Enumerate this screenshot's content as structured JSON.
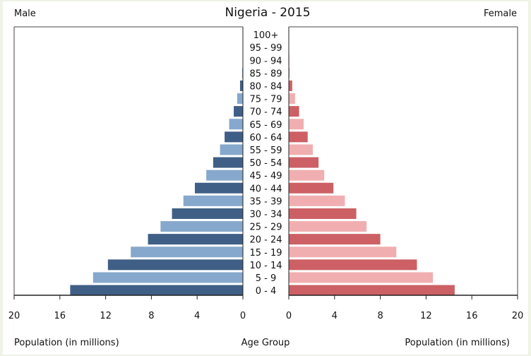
{
  "chart_data": {
    "type": "bar",
    "title": "Nigeria - 2015",
    "left_label": "Male",
    "right_label": "Female",
    "xlabel_left": "Population (in millions)",
    "xlabel_center": "Age Group",
    "xlabel_right": "Population (in millions)",
    "xlim": [
      0,
      20
    ],
    "xticks": [
      "20",
      "16",
      "12",
      "8",
      "4",
      "0"
    ],
    "xticks_right": [
      "0",
      "4",
      "8",
      "12",
      "16",
      "20"
    ],
    "categories": [
      "100+",
      "95 - 99",
      "90 - 94",
      "85 - 89",
      "80 - 84",
      "75 - 79",
      "70 - 74",
      "65 - 69",
      "60 - 64",
      "55 - 59",
      "50 - 54",
      "45 - 49",
      "40 - 44",
      "35 - 39",
      "30 - 34",
      "25 - 29",
      "20 - 24",
      "15 - 19",
      "10 - 14",
      "5 - 9",
      "0 - 4"
    ],
    "series": [
      {
        "name": "Male",
        "values": [
          0.0,
          0.01,
          0.03,
          0.07,
          0.25,
          0.5,
          0.8,
          1.2,
          1.6,
          2.0,
          2.6,
          3.2,
          4.2,
          5.2,
          6.2,
          7.2,
          8.3,
          9.8,
          11.8,
          13.1,
          15.1
        ]
      },
      {
        "name": "Female",
        "values": [
          0.0,
          0.01,
          0.04,
          0.09,
          0.3,
          0.55,
          0.9,
          1.3,
          1.65,
          2.1,
          2.6,
          3.1,
          3.9,
          4.9,
          5.9,
          6.8,
          8.0,
          9.4,
          11.2,
          12.6,
          14.5
        ]
      }
    ],
    "colors": {
      "male_dark": "#3f5f86",
      "male_light": "#86a8cc",
      "female_dark": "#cc6065",
      "female_light": "#f1aeb0",
      "background": "#eef3e6",
      "panel": "#ffffff"
    },
    "grid": false,
    "legend": "none"
  }
}
